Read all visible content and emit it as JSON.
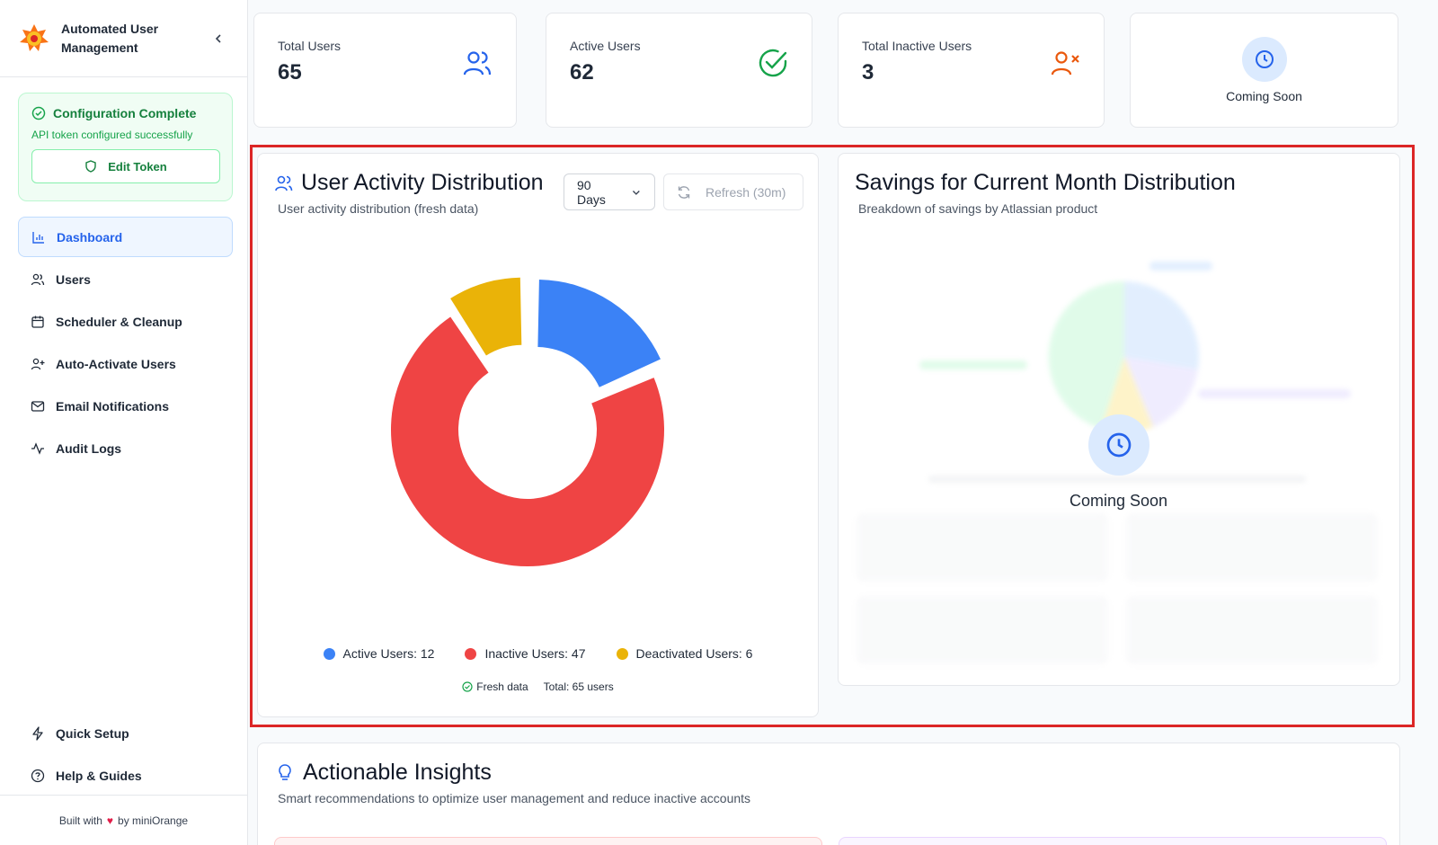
{
  "app": {
    "title": "Automated User Management"
  },
  "config": {
    "title": "Configuration Complete",
    "subtitle": "API token configured successfully",
    "edit_label": "Edit Token"
  },
  "nav": {
    "items": [
      {
        "label": "Dashboard",
        "icon": "bar-chart-icon",
        "active": true
      },
      {
        "label": "Users",
        "icon": "users-icon"
      },
      {
        "label": "Scheduler & Cleanup",
        "icon": "calendar-icon"
      },
      {
        "label": "Auto-Activate Users",
        "icon": "user-plus-icon"
      },
      {
        "label": "Email Notifications",
        "icon": "mail-icon"
      },
      {
        "label": "Audit Logs",
        "icon": "activity-icon"
      }
    ],
    "bottom": [
      {
        "label": "Quick Setup",
        "icon": "zap-icon"
      },
      {
        "label": "Help & Guides",
        "icon": "help-circle-icon"
      }
    ]
  },
  "footer": {
    "prefix": "Built with",
    "suffix": "by miniOrange"
  },
  "stats": [
    {
      "label": "Total Users",
      "value": "65",
      "icon": "users-icon",
      "color": "#2563eb"
    },
    {
      "label": "Active Users",
      "value": "62",
      "icon": "check-circle-icon",
      "color": "#16a34a"
    },
    {
      "label": "Total Inactive Users",
      "value": "3",
      "icon": "user-x-icon",
      "color": "#ea580c"
    },
    {
      "label": "Coming Soon",
      "icon": "clock-icon",
      "color": "#2563eb"
    }
  ],
  "activity": {
    "title": "User Activity Distribution",
    "subtitle": "User activity distribution (fresh data)",
    "range": "90 Days",
    "refresh": "Refresh (30m)",
    "fresh_label": "Fresh data",
    "total_label": "Total: 65 users"
  },
  "chart_data": {
    "type": "pie",
    "categories": [
      "Active Users",
      "Inactive Users",
      "Deactivated Users"
    ],
    "values": [
      12,
      47,
      6
    ],
    "colors": [
      "#3b82f6",
      "#ef4444",
      "#eab308"
    ],
    "legend_labels": [
      "Active Users: 12",
      "Inactive Users: 47",
      "Deactivated Users: 6"
    ],
    "legend": "bottom"
  },
  "savings": {
    "title": "Savings for Current Month Distribution",
    "subtitle": "Breakdown of savings by Atlassian product",
    "coming_soon": "Coming Soon"
  },
  "insights": {
    "title": "Actionable Insights",
    "subtitle": "Smart recommendations to optimize user management and reduce inactive accounts"
  },
  "colors": {
    "accent": "#2563eb",
    "success": "#16a34a",
    "highlight": "#dc2626"
  }
}
